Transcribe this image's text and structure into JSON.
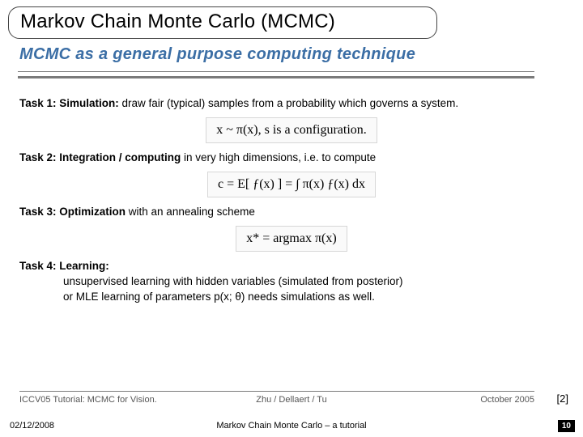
{
  "title": "Markov Chain Monte Carlo (MCMC)",
  "subtitle": "MCMC as a general purpose computing technique",
  "tasks": {
    "t1": {
      "label": "Task 1: Simulation:",
      "desc": " draw fair (typical) samples from a probability which governs a system."
    },
    "t2": {
      "label": "Task 2: Integration / computing",
      "desc": " in very high dimensions, i.e. to compute"
    },
    "t3": {
      "label": "Task 3: Optimization",
      "desc": " with an annealing scheme"
    },
    "t4": {
      "label": "Task 4:  Learning:",
      "desc": ""
    }
  },
  "formulas": {
    "f1": "x  ~  π(x),  s is a configuration.",
    "f2": "c = E[ ƒ(x) ] = ∫ π(x) ƒ(x) dx",
    "f3": "x* = argmax  π(x)"
  },
  "learning": {
    "l1": "unsupervised learning with hidden variables (simulated from posterior)",
    "l2": "or MLE learning of parameters p(x; θ) needs simulations as well."
  },
  "citation": {
    "left": "ICCV05 Tutorial: MCMC for Vision.",
    "mid": "Zhu / Dellaert / Tu",
    "right": "October   2005"
  },
  "ref2": "[2]",
  "footer": {
    "date": "02/12/2008",
    "title": "Markov Chain Monte Carlo – a tutorial",
    "page": "10"
  },
  "colors": {
    "subtitle": "#3b6ea5",
    "rule": "#7a7a7a"
  }
}
